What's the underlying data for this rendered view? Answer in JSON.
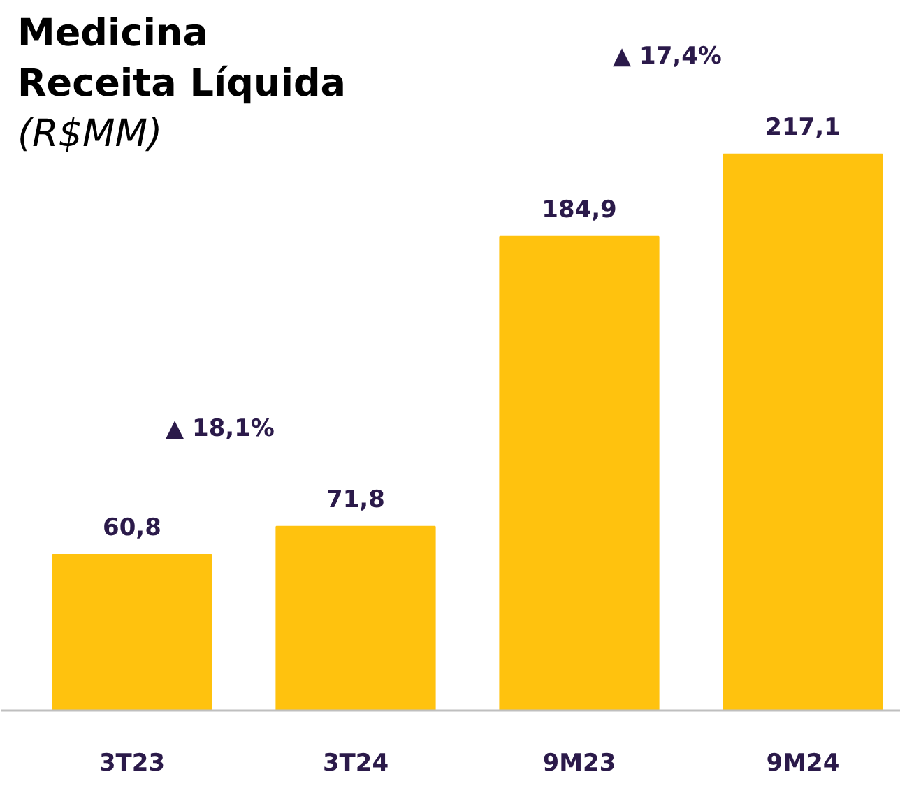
{
  "chart_data": {
    "type": "bar",
    "title": "Medicina\nReceita Líquida",
    "subtitle": "(R$MM)",
    "categories": [
      "3T23",
      "3T24",
      "9M23",
      "9M24"
    ],
    "values": [
      60.8,
      71.8,
      184.9,
      217.1
    ],
    "value_labels": [
      "60,8",
      "71,8",
      "184,9",
      "217,1"
    ],
    "color": "#ffc20e",
    "annotations": [
      "▲ 18,1%",
      "▲ 17,4%"
    ]
  }
}
